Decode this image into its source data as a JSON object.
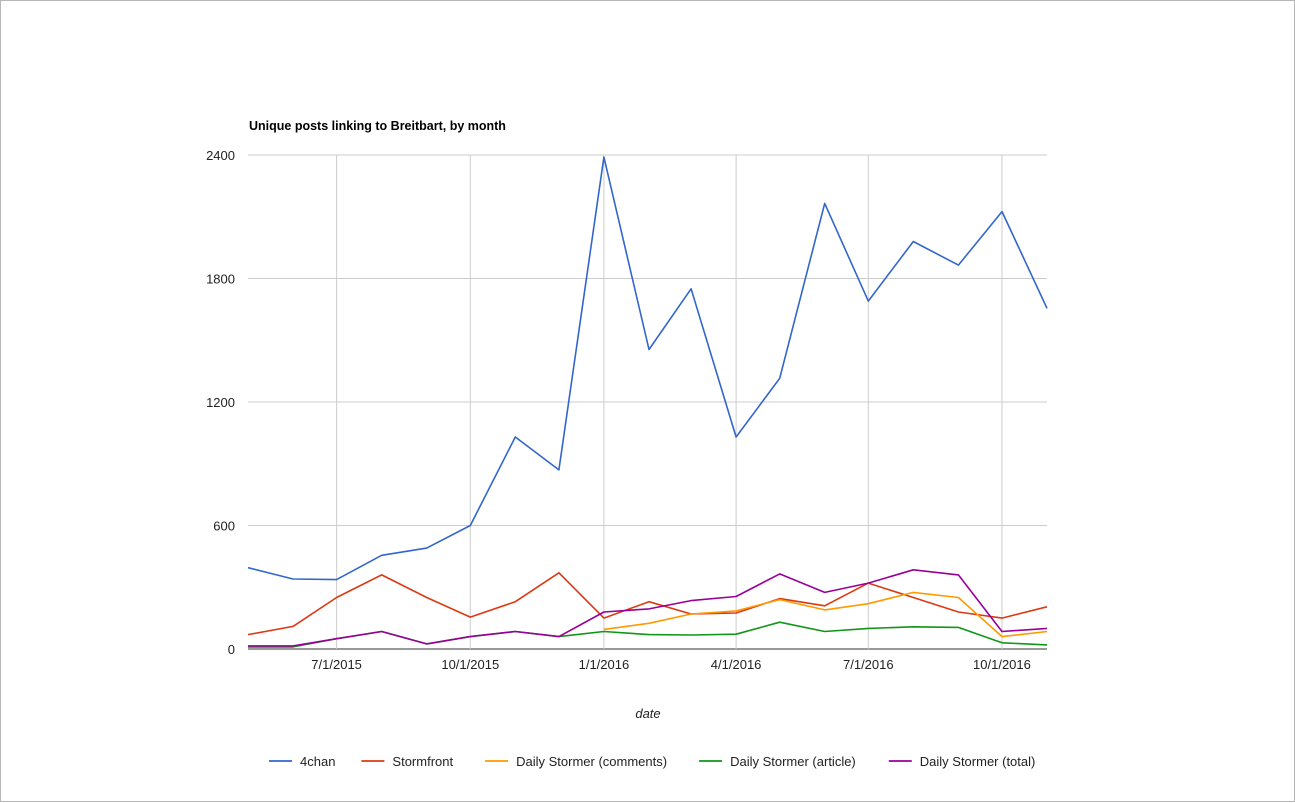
{
  "chart_data": {
    "type": "line",
    "title": "Unique posts linking to Breitbart, by month",
    "xlabel": "date",
    "ylabel": "",
    "ylim": [
      0,
      2400
    ],
    "yticks": [
      0,
      600,
      1200,
      1800,
      2400
    ],
    "xticks": [
      "7/1/2015",
      "10/1/2015",
      "1/1/2016",
      "4/1/2016",
      "7/1/2016",
      "10/1/2016"
    ],
    "x": [
      "2015-05-01",
      "2015-06-01",
      "2015-07-01",
      "2015-08-01",
      "2015-09-01",
      "2015-10-01",
      "2015-11-01",
      "2015-12-01",
      "2016-01-01",
      "2016-02-01",
      "2016-03-01",
      "2016-04-01",
      "2016-05-01",
      "2016-06-01",
      "2016-07-01",
      "2016-08-01",
      "2016-09-01",
      "2016-10-01",
      "2016-11-01"
    ],
    "grid": true,
    "legend_position": "bottom",
    "series": [
      {
        "name": "4chan",
        "color": "#3366cc",
        "values": [
          395,
          340,
          337,
          455,
          490,
          600,
          1030,
          870,
          2390,
          1455,
          1750,
          1030,
          1315,
          2165,
          1690,
          1980,
          1865,
          2125,
          1655
        ]
      },
      {
        "name": "Stormfront",
        "color": "#dc3912",
        "values": [
          70,
          110,
          250,
          360,
          250,
          155,
          230,
          370,
          150,
          230,
          170,
          175,
          245,
          210,
          320,
          250,
          180,
          150,
          205
        ]
      },
      {
        "name": "Daily Stormer (comments)",
        "color": "#ff9900",
        "values": [
          null,
          null,
          null,
          null,
          null,
          null,
          null,
          null,
          95,
          125,
          170,
          185,
          240,
          190,
          220,
          275,
          250,
          60,
          85
        ]
      },
      {
        "name": "Daily Stormer (article)",
        "color": "#109618",
        "values": [
          10,
          10,
          50,
          85,
          25,
          60,
          85,
          60,
          85,
          70,
          68,
          72,
          130,
          85,
          100,
          108,
          105,
          30,
          20
        ]
      },
      {
        "name": "Daily Stormer (total)",
        "color": "#990099",
        "values": [
          15,
          15,
          50,
          85,
          25,
          60,
          85,
          60,
          180,
          195,
          235,
          255,
          365,
          275,
          320,
          385,
          360,
          85,
          100
        ]
      }
    ]
  }
}
